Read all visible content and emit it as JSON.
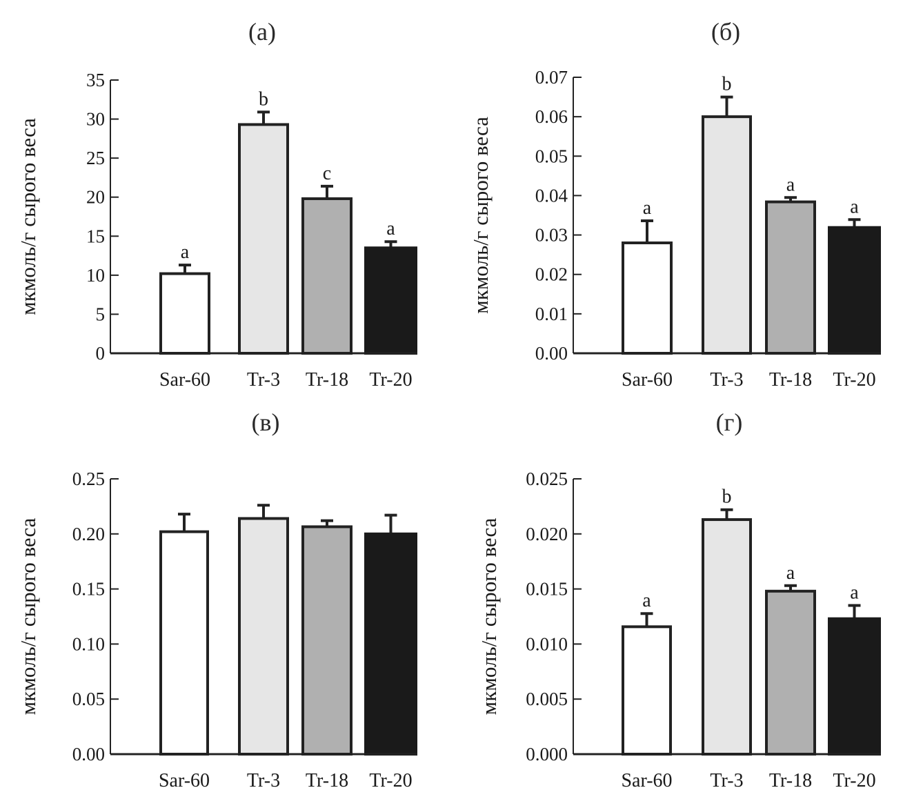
{
  "chart_data": [
    {
      "type": "bar",
      "title": "(a)",
      "xlabel": "",
      "ylabel": "мкмоль/г сырого веса",
      "categories": [
        "Sar-60",
        "Tr-3",
        "Tr-18",
        "Tr-20"
      ],
      "values": [
        10.2,
        29.3,
        19.8,
        13.5
      ],
      "errors": [
        1.1,
        1.6,
        1.6,
        0.8
      ],
      "significance": [
        "a",
        "b",
        "c",
        "a"
      ],
      "ylim": [
        0,
        35
      ],
      "yticks": [
        0,
        5,
        10,
        15,
        20,
        25,
        30,
        35
      ],
      "ytick_labels": [
        "0",
        "5",
        "10",
        "15",
        "20",
        "25",
        "30",
        "35"
      ],
      "grid": false
    },
    {
      "type": "bar",
      "title": "(б)",
      "xlabel": "",
      "ylabel": "мкмоль/г сырого веса",
      "categories": [
        "Sar-60",
        "Tr-3",
        "Tr-18",
        "Tr-20"
      ],
      "values": [
        0.028,
        0.06,
        0.0384,
        0.0319
      ],
      "errors": [
        0.0056,
        0.005,
        0.0011,
        0.002
      ],
      "significance": [
        "a",
        "b",
        "a",
        "a"
      ],
      "ylim": [
        0,
        0.07
      ],
      "yticks": [
        0,
        0.01,
        0.02,
        0.03,
        0.04,
        0.05,
        0.06,
        0.07
      ],
      "ytick_labels": [
        "0.00",
        "0.01",
        "0.02",
        "0.03",
        "0.04",
        "0.05",
        "0.06",
        "0.07"
      ],
      "grid": false
    },
    {
      "type": "bar",
      "title": "(в)",
      "xlabel": "",
      "ylabel": "мкмоль/г сырого веса",
      "categories": [
        "Sar-60",
        "Tr-3",
        "Tr-18",
        "Tr-20"
      ],
      "values": [
        0.202,
        0.214,
        0.2065,
        0.2
      ],
      "errors": [
        0.016,
        0.012,
        0.0055,
        0.017
      ],
      "significance": [
        "",
        "",
        "",
        ""
      ],
      "ylim": [
        0,
        0.25
      ],
      "yticks": [
        0,
        0.05,
        0.1,
        0.15,
        0.2,
        0.25
      ],
      "ytick_labels": [
        "0.00",
        "0.05",
        "0.10",
        "0.15",
        "0.20",
        "0.25"
      ],
      "grid": false
    },
    {
      "type": "bar",
      "title": "(г)",
      "xlabel": "",
      "ylabel": "мкмоль/г сырого веса",
      "categories": [
        "Sar-60",
        "Tr-3",
        "Tr-18",
        "Tr-20"
      ],
      "values": [
        0.01157,
        0.0213,
        0.0148,
        0.0123
      ],
      "errors": [
        0.0012,
        0.0009,
        0.0005,
        0.0012
      ],
      "significance": [
        "a",
        "b",
        "a",
        "a"
      ],
      "ylim": [
        0,
        0.025
      ],
      "yticks": [
        0,
        0.005,
        0.01,
        0.015,
        0.02,
        0.025
      ],
      "ytick_labels": [
        "0.000",
        "0.005",
        "0.010",
        "0.015",
        "0.020",
        "0.025"
      ],
      "grid": false
    }
  ],
  "bar_colors": [
    "#ffffff",
    "#e6e6e6",
    "#b0b0b0",
    "#1a1a1a"
  ],
  "outline_color": "#222222"
}
